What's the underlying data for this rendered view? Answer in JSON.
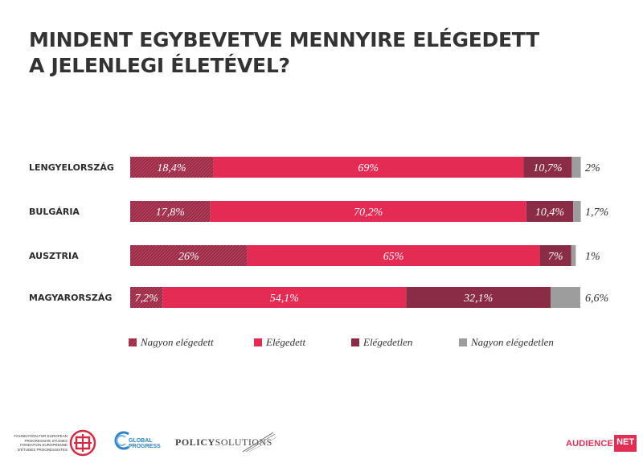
{
  "title": {
    "line1": "MINDENT EGYBEVETVE MENNYIRE ELÉGEDETT",
    "line2": "A JELENLEGI ÉLETÉVEL?"
  },
  "chart_data": {
    "type": "bar",
    "orientation": "horizontal",
    "stacked": true,
    "title": "MINDENT EGYBEVETVE MENNYIRE ELÉGEDETT A JELENLEGI ÉLETÉVEL?",
    "categories": [
      "LENGYELORSZÁG",
      "BULGÁRIA",
      "AUSZTRIA",
      "MAGYARORSZÁG"
    ],
    "series": [
      {
        "name": "Nagyon elégedett",
        "color": "#8b2f48",
        "pattern": "hatched",
        "values": [
          18.4,
          17.8,
          26,
          7.2
        ],
        "labels": [
          "18,4%",
          "17,8%",
          "26%",
          "7,2%"
        ]
      },
      {
        "name": "Elégedett",
        "color": "#e32b54",
        "values": [
          69,
          70.2,
          65,
          54.1
        ],
        "labels": [
          "69%",
          "70,2%",
          "65%",
          "54,1%"
        ]
      },
      {
        "name": "Elégedetlen",
        "color": "#8a2c45",
        "values": [
          10.7,
          10.4,
          7,
          32.1
        ],
        "labels": [
          "10,7%",
          "10,4%",
          "7%",
          "32,1%"
        ]
      },
      {
        "name": "Nagyon elégedetlen",
        "color": "#9d9d9d",
        "values": [
          2,
          1.7,
          1,
          6.6
        ],
        "labels": [
          "2%",
          "1,7%",
          "1%",
          "6,6%"
        ]
      }
    ],
    "xlim": [
      0,
      100
    ],
    "legend_position": "bottom",
    "grid": false
  },
  "footer": {
    "fepsl_lines": [
      "FOUNDATION FOR EUROPEAN",
      "PROGRESSIVE STUDIES",
      "FONDATION EUROPÉENNE",
      "D'ÉTUDES PROGRESSISTES"
    ],
    "global_progress_1": "GLOBAL",
    "global_progress_2": "PROGRESS",
    "policy_a": "POLICY",
    "policy_b": "SOLUTIONS",
    "audience_a": "AUDIENCE",
    "audience_b": "NET"
  }
}
